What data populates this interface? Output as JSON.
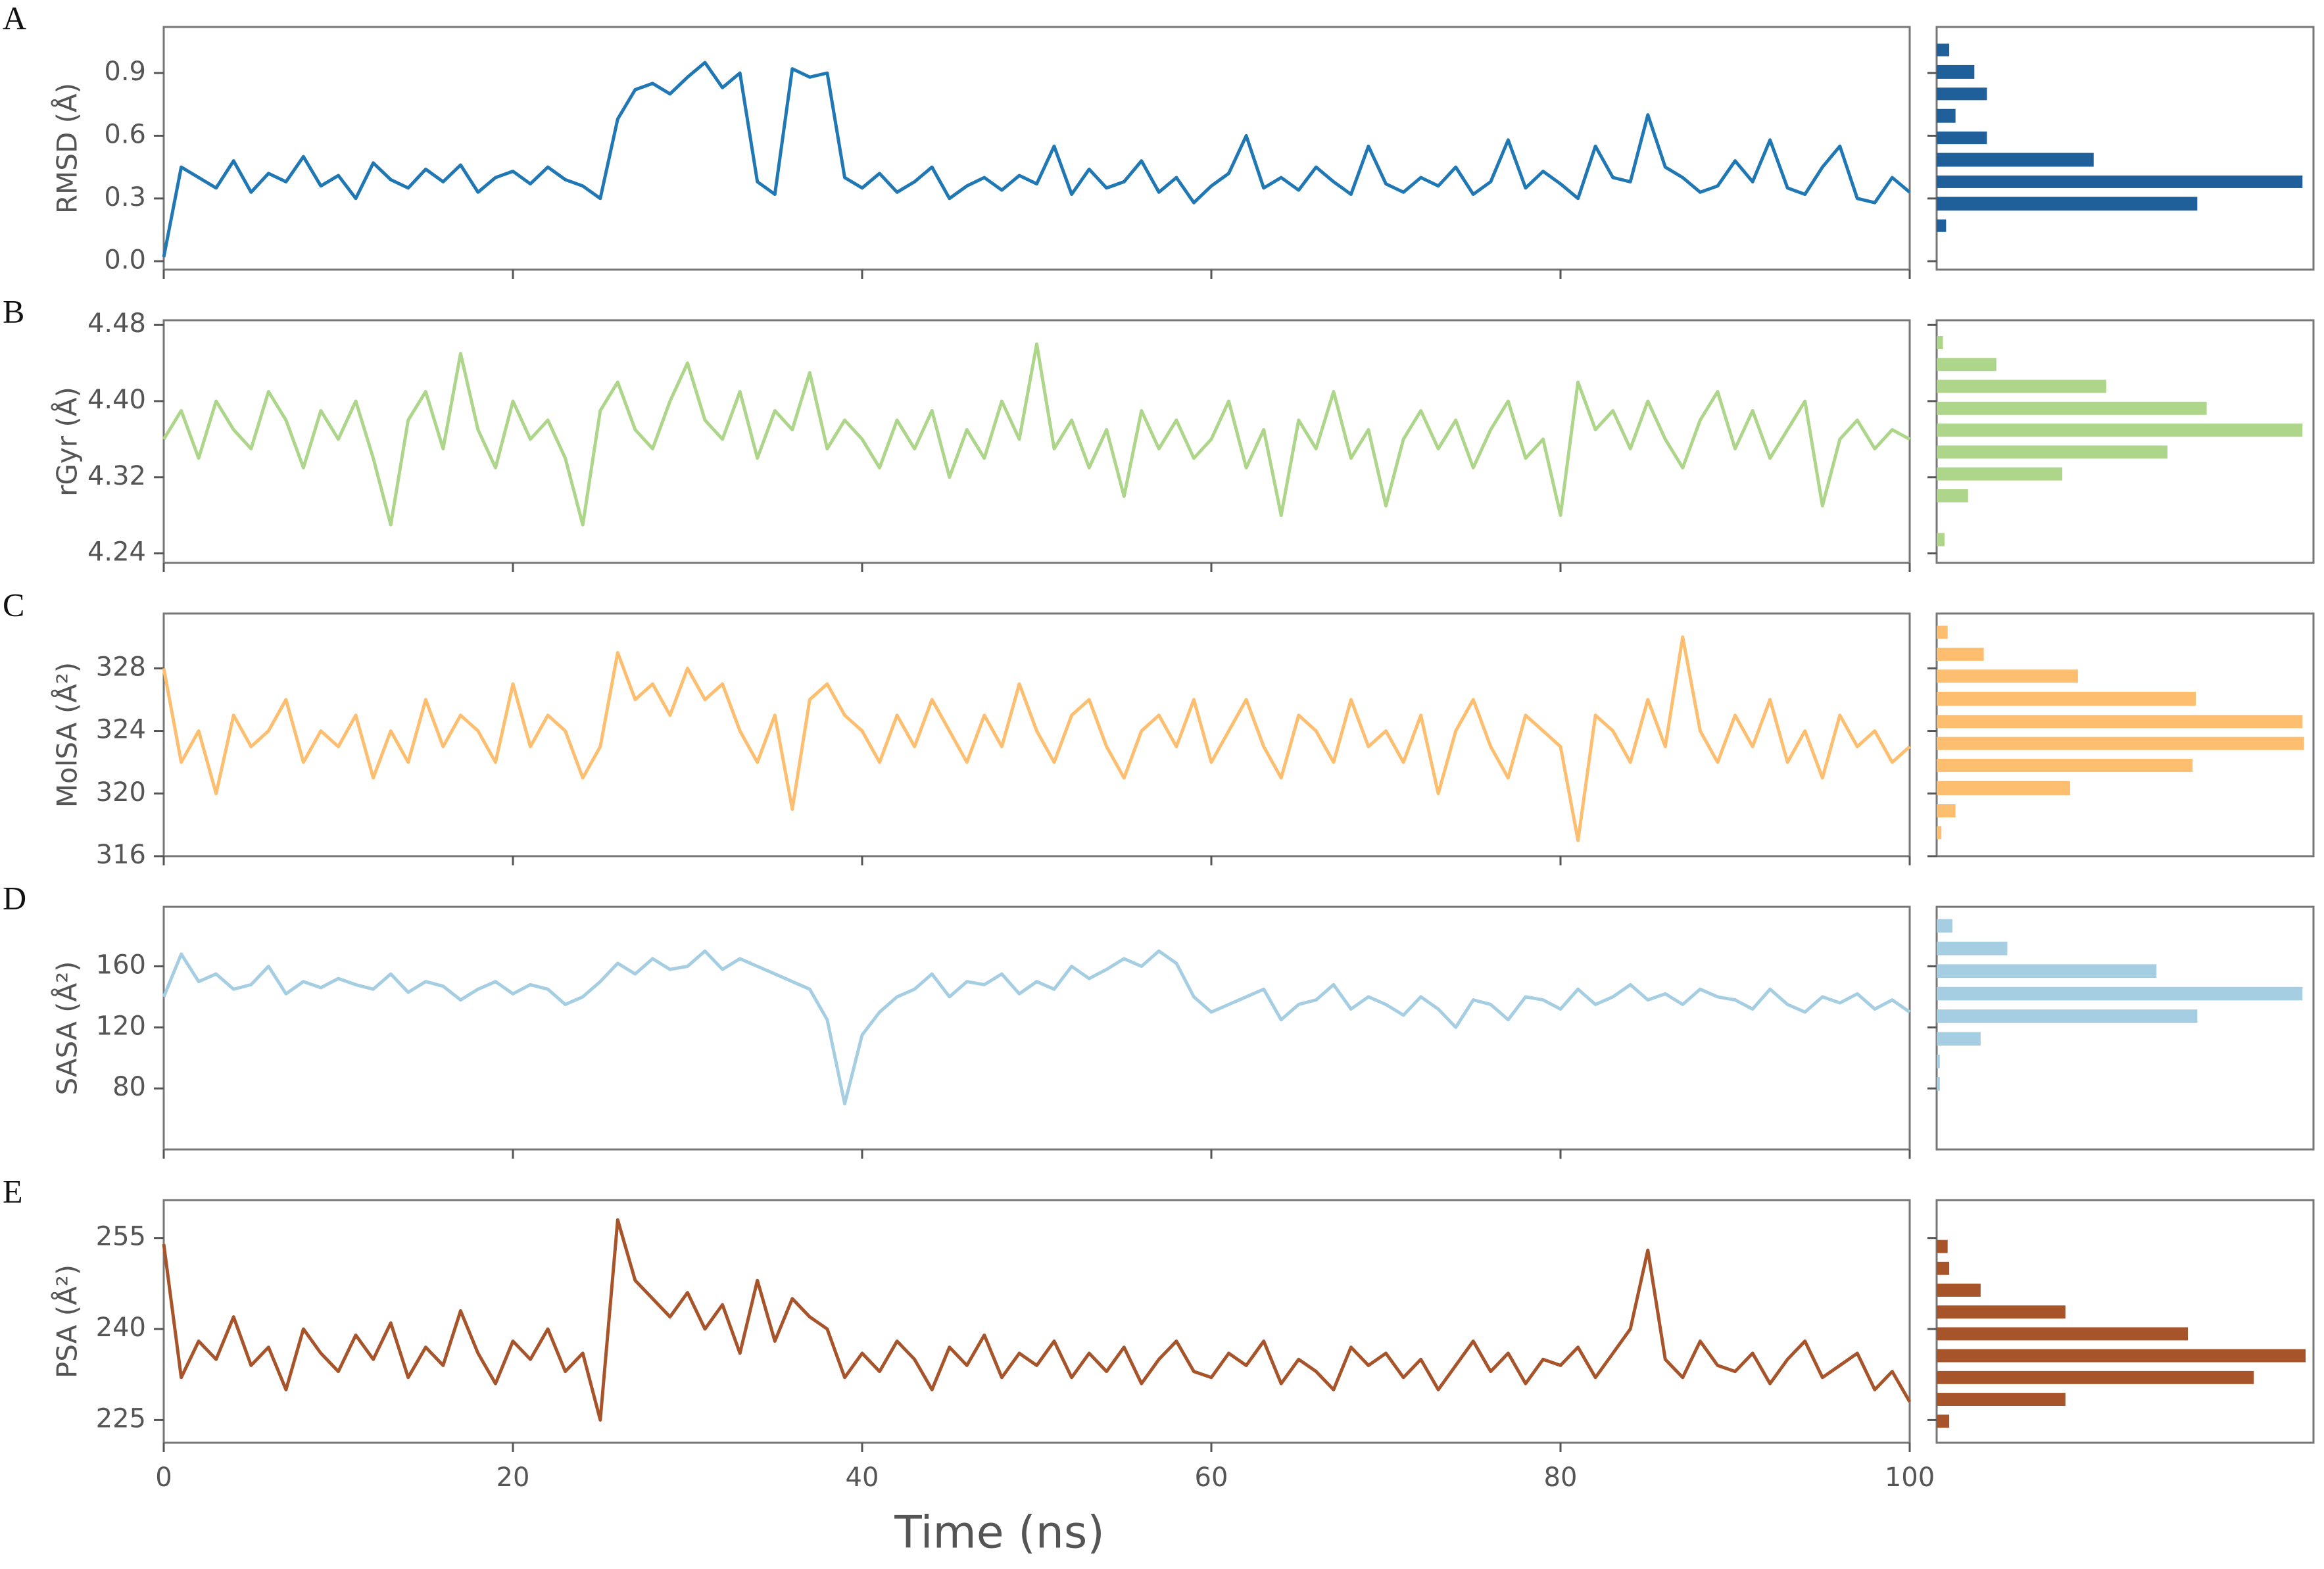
{
  "chart_data": {
    "type": "line",
    "xlabel": "Time (ns)",
    "xlim": [
      0,
      100
    ],
    "xticks": [
      0,
      20,
      40,
      60,
      80,
      100
    ],
    "x": [
      0,
      1,
      2,
      3,
      4,
      5,
      6,
      7,
      8,
      9,
      10,
      11,
      12,
      13,
      14,
      15,
      16,
      17,
      18,
      19,
      20,
      21,
      22,
      23,
      24,
      25,
      26,
      27,
      28,
      29,
      30,
      31,
      32,
      33,
      34,
      35,
      36,
      37,
      38,
      39,
      40,
      41,
      42,
      43,
      44,
      45,
      46,
      47,
      48,
      49,
      50,
      51,
      52,
      53,
      54,
      55,
      56,
      57,
      58,
      59,
      60,
      61,
      62,
      63,
      64,
      65,
      66,
      67,
      68,
      69,
      70,
      71,
      72,
      73,
      74,
      75,
      76,
      77,
      78,
      79,
      80,
      81,
      82,
      83,
      84,
      85,
      86,
      87,
      88,
      89,
      90,
      91,
      92,
      93,
      94,
      95,
      96,
      97,
      98,
      99,
      100
    ],
    "panels": [
      {
        "label": "A",
        "ylabel": "RMSD (Å)",
        "color": "#1f77b4",
        "ylim": [
          -0.04,
          1.12
        ],
        "yticks": [
          {
            "value": 0,
            "label": "0.0"
          },
          0.3,
          0.6,
          0.9
        ],
        "values": [
          0.02,
          0.45,
          0.4,
          0.35,
          0.48,
          0.33,
          0.42,
          0.38,
          0.5,
          0.36,
          0.41,
          0.3,
          0.47,
          0.39,
          0.35,
          0.44,
          0.38,
          0.46,
          0.33,
          0.4,
          0.43,
          0.37,
          0.45,
          0.39,
          0.36,
          0.3,
          0.68,
          0.82,
          0.85,
          0.8,
          0.88,
          0.95,
          0.83,
          0.9,
          0.38,
          0.32,
          0.92,
          0.88,
          0.9,
          0.4,
          0.35,
          0.42,
          0.33,
          0.38,
          0.45,
          0.3,
          0.36,
          0.4,
          0.34,
          0.41,
          0.37,
          0.55,
          0.32,
          0.44,
          0.35,
          0.38,
          0.48,
          0.33,
          0.4,
          0.28,
          0.36,
          0.42,
          0.6,
          0.35,
          0.4,
          0.34,
          0.45,
          0.38,
          0.32,
          0.55,
          0.37,
          0.33,
          0.4,
          0.36,
          0.45,
          0.32,
          0.38,
          0.58,
          0.35,
          0.43,
          0.37,
          0.3,
          0.55,
          0.4,
          0.38,
          0.7,
          0.45,
          0.4,
          0.33,
          0.36,
          0.48,
          0.38,
          0.58,
          0.35,
          0.32,
          0.45,
          0.55,
          0.3,
          0.28,
          0.4,
          0.33
        ],
        "histogram": {
          "type": "barh",
          "color": "#1f5f9a",
          "xlim": [
            0,
            240
          ],
          "bins": [
            0.12,
            0.22,
            0.33,
            0.43,
            0.54,
            0.64,
            0.75,
            0.85,
            0.96,
            1.06
          ],
          "counts": [
            6,
            166,
            233,
            100,
            32,
            12,
            32,
            24,
            8
          ]
        }
      },
      {
        "label": "B",
        "ylabel": "rGyr (Å)",
        "color": "#aed68a",
        "ylim": [
          4.23,
          4.485
        ],
        "yticks": [
          4.24,
          4.32,
          {
            "value": 4.4,
            "label": "4.40"
          },
          4.48
        ],
        "values": [
          4.36,
          4.39,
          4.34,
          4.4,
          4.37,
          4.35,
          4.41,
          4.38,
          4.33,
          4.39,
          4.36,
          4.4,
          4.34,
          4.27,
          4.38,
          4.41,
          4.35,
          4.45,
          4.37,
          4.33,
          4.4,
          4.36,
          4.38,
          4.34,
          4.27,
          4.39,
          4.42,
          4.37,
          4.35,
          4.4,
          4.44,
          4.38,
          4.36,
          4.41,
          4.34,
          4.39,
          4.37,
          4.43,
          4.35,
          4.38,
          4.36,
          4.33,
          4.38,
          4.35,
          4.39,
          4.32,
          4.37,
          4.34,
          4.4,
          4.36,
          4.46,
          4.35,
          4.38,
          4.33,
          4.37,
          4.3,
          4.39,
          4.35,
          4.38,
          4.34,
          4.36,
          4.4,
          4.33,
          4.37,
          4.28,
          4.38,
          4.35,
          4.41,
          4.34,
          4.37,
          4.29,
          4.36,
          4.39,
          4.35,
          4.38,
          4.33,
          4.37,
          4.4,
          4.34,
          4.36,
          4.28,
          4.42,
          4.37,
          4.39,
          4.35,
          4.4,
          4.36,
          4.33,
          4.38,
          4.41,
          4.35,
          4.39,
          4.34,
          4.37,
          4.4,
          4.29,
          4.36,
          4.38,
          4.35,
          4.37,
          4.36
        ],
        "histogram": {
          "type": "barh",
          "color": "#aed68a",
          "xlim": [
            0,
            240
          ],
          "bins": [
            4.243,
            4.266,
            4.289,
            4.312,
            4.335,
            4.358,
            4.381,
            4.404,
            4.427,
            4.45,
            4.473
          ],
          "counts": [
            5,
            0,
            20,
            80,
            147,
            233,
            172,
            108,
            38,
            4
          ]
        }
      },
      {
        "label": "C",
        "ylabel": "MolSA (Å²)",
        "color": "#fdbf6f",
        "ylim": [
          316,
          331.5
        ],
        "yticks": [
          316,
          320,
          324,
          328
        ],
        "values": [
          328,
          322,
          324,
          320,
          325,
          323,
          324,
          326,
          322,
          324,
          323,
          325,
          321,
          324,
          322,
          326,
          323,
          325,
          324,
          322,
          327,
          323,
          325,
          324,
          321,
          323,
          329,
          326,
          327,
          325,
          328,
          326,
          327,
          324,
          322,
          325,
          319,
          326,
          327,
          325,
          324,
          322,
          325,
          323,
          326,
          324,
          322,
          325,
          323,
          327,
          324,
          322,
          325,
          326,
          323,
          321,
          324,
          325,
          323,
          326,
          322,
          324,
          326,
          323,
          321,
          325,
          324,
          322,
          326,
          323,
          324,
          322,
          325,
          320,
          324,
          326,
          323,
          321,
          325,
          324,
          323,
          317,
          325,
          324,
          322,
          326,
          323,
          330,
          324,
          322,
          325,
          323,
          326,
          322,
          324,
          321,
          325,
          323,
          324,
          322,
          323
        ],
        "histogram": {
          "type": "barh",
          "color": "#fdbf6f",
          "xlim": [
            0,
            240
          ],
          "bins": [
            316.8,
            318.2,
            319.6,
            321.1,
            322.5,
            323.9,
            325.3,
            326.8,
            328.2,
            329.6,
            331.0
          ],
          "counts": [
            3,
            12,
            85,
            163,
            234,
            233,
            165,
            90,
            30,
            7
          ]
        }
      },
      {
        "label": "D",
        "ylabel": "SASA (Å²)",
        "color": "#a6cee3",
        "ylim": [
          40,
          199
        ],
        "yticks": [
          80,
          120,
          160
        ],
        "values": [
          140,
          168,
          150,
          155,
          145,
          148,
          160,
          142,
          150,
          146,
          152,
          148,
          145,
          155,
          143,
          150,
          147,
          138,
          145,
          150,
          142,
          148,
          145,
          135,
          140,
          150,
          162,
          155,
          165,
          158,
          160,
          170,
          158,
          165,
          160,
          155,
          150,
          145,
          125,
          70,
          115,
          130,
          140,
          145,
          155,
          140,
          150,
          148,
          155,
          142,
          150,
          145,
          160,
          152,
          158,
          165,
          160,
          170,
          162,
          140,
          130,
          135,
          140,
          145,
          125,
          135,
          138,
          148,
          132,
          140,
          135,
          128,
          140,
          132,
          120,
          138,
          135,
          125,
          140,
          138,
          132,
          145,
          135,
          140,
          148,
          138,
          142,
          135,
          145,
          140,
          138,
          132,
          145,
          135,
          130,
          140,
          136,
          142,
          132,
          138,
          130
        ],
        "histogram": {
          "type": "barh",
          "color": "#a6cee3",
          "xlim": [
            0,
            240
          ],
          "bins": [
            75.5,
            90.3,
            105.1,
            119.9,
            134.7,
            149.5,
            164.3,
            179.1,
            193.9
          ],
          "counts": [
            2,
            2,
            28,
            166,
            233,
            140,
            45,
            10
          ]
        }
      },
      {
        "label": "E",
        "ylabel": "PSA (Å²)",
        "color": "#a8542a",
        "ylim": [
          221.25,
          261.25
        ],
        "yticks": [
          225,
          240,
          255
        ],
        "values": [
          254,
          232,
          238,
          235,
          242,
          234,
          237,
          230,
          240,
          236,
          233,
          239,
          235,
          241,
          232,
          237,
          234,
          243,
          236,
          231,
          238,
          235,
          240,
          233,
          236,
          225,
          258,
          248,
          245,
          242,
          246,
          240,
          244,
          236,
          248,
          238,
          245,
          242,
          240,
          232,
          236,
          233,
          238,
          235,
          230,
          237,
          234,
          239,
          232,
          236,
          234,
          238,
          232,
          236,
          233,
          237,
          231,
          235,
          238,
          233,
          232,
          236,
          234,
          238,
          231,
          235,
          233,
          230,
          237,
          234,
          236,
          232,
          235,
          230,
          234,
          238,
          233,
          236,
          231,
          235,
          234,
          237,
          232,
          236,
          240,
          253,
          235,
          232,
          238,
          234,
          233,
          236,
          231,
          235,
          238,
          232,
          234,
          236,
          230,
          233,
          228
        ],
        "histogram": {
          "type": "barh",
          "color": "#a8542a",
          "xlim": [
            0,
            240
          ],
          "bins": [
            223,
            226.6,
            230.2,
            233.8,
            237.4,
            241,
            244.6,
            248.2,
            251.8,
            255.4
          ],
          "counts": [
            8,
            82,
            202,
            235,
            160,
            82,
            28,
            8,
            7
          ]
        }
      }
    ]
  }
}
